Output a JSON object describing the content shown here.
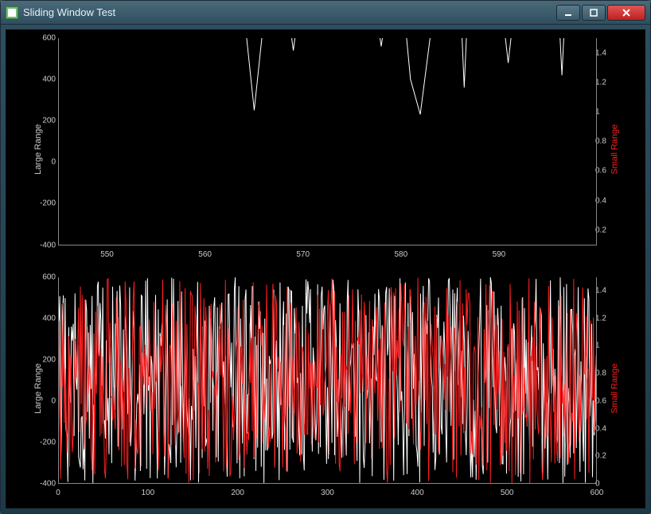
{
  "window": {
    "title": "Sliding Window Test"
  },
  "colors": {
    "background": "#000000",
    "axis": "#888888",
    "tick_text": "#cccccc",
    "series_large": "#ffffff",
    "series_small": "#ff2020",
    "ylabel_left": "#cccccc",
    "ylabel_right": "#ff2020"
  },
  "typography": {
    "tick_fontsize": 10,
    "label_fontsize": 11,
    "font_family": "Segoe UI"
  },
  "top_plot": {
    "type": "line",
    "ylabel_left": "Large Range",
    "ylabel_right": "Small Range",
    "xlim": [
      545,
      600
    ],
    "ylim_left": [
      -400,
      600
    ],
    "ylim_right": [
      0.1,
      1.5
    ],
    "xticks": [
      550,
      560,
      570,
      580,
      590
    ],
    "yticks_left": [
      -400,
      -200,
      0,
      200,
      400,
      600
    ],
    "yticks_right": [
      0.2,
      0.4,
      0.6,
      0.8,
      1.0,
      1.2,
      1.4
    ],
    "line_width": 1,
    "series_large": [
      {
        "x": 563,
        "y": 900
      },
      {
        "x": 564,
        "y": 700
      },
      {
        "x": 565,
        "y": 250
      },
      {
        "x": 566,
        "y": 700
      },
      {
        "x": 567,
        "y": 900
      },
      {
        "x": 568,
        "y": 900
      },
      {
        "x": 569,
        "y": 540
      },
      {
        "x": 570,
        "y": 900
      },
      {
        "x": 577,
        "y": 900
      },
      {
        "x": 578,
        "y": 560
      },
      {
        "x": 579,
        "y": 900
      },
      {
        "x": 580,
        "y": 900
      },
      {
        "x": 581,
        "y": 400
      },
      {
        "x": 582,
        "y": 230
      },
      {
        "x": 583,
        "y": 600
      },
      {
        "x": 584,
        "y": 900
      },
      {
        "x": 586,
        "y": 900
      },
      {
        "x": 586.5,
        "y": 360
      },
      {
        "x": 587,
        "y": 900
      },
      {
        "x": 590,
        "y": 900
      },
      {
        "x": 591,
        "y": 480
      },
      {
        "x": 592,
        "y": 900
      },
      {
        "x": 596,
        "y": 900
      },
      {
        "x": 596.5,
        "y": 420
      },
      {
        "x": 597,
        "y": 900
      }
    ],
    "series_small": []
  },
  "bottom_plot": {
    "type": "line",
    "ylabel_left": "Large Range",
    "ylabel_right": "Small Range",
    "xlim": [
      0,
      600
    ],
    "ylim_left": [
      -400,
      600
    ],
    "ylim_right": [
      0.0,
      1.5
    ],
    "xticks": [
      0,
      100,
      200,
      300,
      400,
      500,
      600
    ],
    "yticks_left": [
      -400,
      -200,
      0,
      200,
      400,
      600
    ],
    "yticks_right": [
      0.0,
      0.2,
      0.4,
      0.6,
      0.8,
      1.0,
      1.2,
      1.4
    ],
    "line_width": 1,
    "noise_description": "dense random oscillation, ~300 samples each series, white amplitude [-400,600], red amplitude [0,1.5] scaled to right axis",
    "series_large_randseed": 1,
    "series_small_randseed": 2
  }
}
